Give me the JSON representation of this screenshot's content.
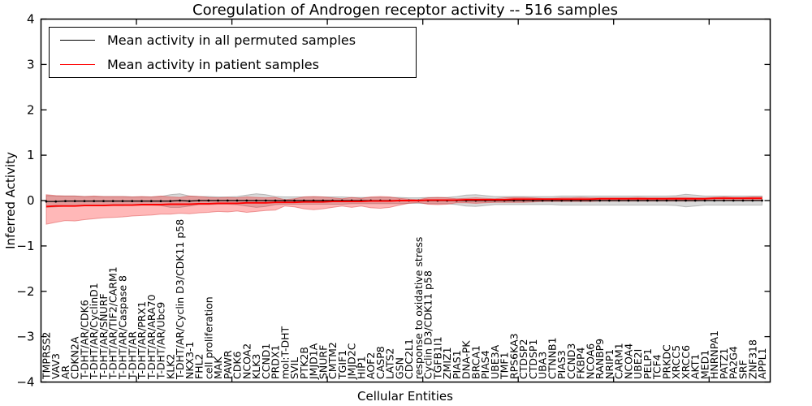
{
  "figure": {
    "title": "Coregulation of Androgen receptor activity -- 516 samples",
    "xlabel": "Cellular Entities",
    "ylabel": "Inferred Activity",
    "legend": [
      {
        "label": "Mean activity in all permuted samples",
        "color": "#000000"
      },
      {
        "label": "Mean activity in patient samples",
        "color": "#ff0000"
      }
    ]
  },
  "chart_data": {
    "type": "line",
    "title": "Coregulation of Androgen receptor activity -- 516 samples",
    "xlabel": "Cellular Entities",
    "ylabel": "Inferred Activity",
    "ylim": [
      -4,
      4
    ],
    "yticks": [
      4,
      3,
      2,
      1,
      0,
      -1,
      -2,
      -3,
      -4
    ],
    "grid": false,
    "legend_position": "upper left",
    "band_colors": {
      "permuted": "rgba(0,0,0,0.15)",
      "patient": "rgba(255,0,0,0.28)"
    },
    "categories": [
      "TMPRSS2",
      "VAV3",
      "AR",
      "CDKN2A",
      "T-DHT/AR/CDK6",
      "T-DHT/AR/CyclinD1",
      "T-DHT/AR/SNURF",
      "T-DHT/AR/TIF2/CARM1",
      "T-DHT/AR/Caspase 8",
      "T-DHT/AR",
      "T-DHT/AR/PRX1",
      "T-DHT/AR/ARA70",
      "T-DHT/AR/Ubc9",
      "KLK2",
      "T-DHT/AR/Cyclin D3/CDK11 p58",
      "NKX3-1",
      "FHL2",
      "cell proliferation",
      "MAK",
      "PAWR",
      "CDK6",
      "NCOA2",
      "KLK3",
      "CCND1",
      "PRDX1",
      "mol:T-DHT",
      "SVIL",
      "PTK2B",
      "JMJD1A",
      "SNURF",
      "CMTM2",
      "TGIF1",
      "JMJD2C",
      "HIP1",
      "AOF2",
      "CASP8",
      "LATS2",
      "GSN",
      "CDC2L1",
      "response to oxidative stress",
      "Cyclin D3/CDK11 p58",
      "TGFB1I1",
      "ZMIZ1",
      "PIAS1",
      "DNA-PK",
      "BRCA1",
      "PIAS4",
      "UBE3A",
      "TMF1",
      "RPS6KA3",
      "CTDSP2",
      "CTDSP1",
      "UBA3",
      "CTNNB1",
      "PIAS3",
      "CCND3",
      "FKBP4",
      "NCOA6",
      "RANBP9",
      "NRIP1",
      "CARM1",
      "NCOA4",
      "UBE2I",
      "PELP1",
      "TCF4",
      "PRKDC",
      "XRCC5",
      "XRCC6",
      "AKT1",
      "MED1",
      "HNRNPA1",
      "PATZ1",
      "PA2G4",
      "SRF",
      "ZNF318",
      "APPL1"
    ],
    "series": [
      {
        "name": "Mean activity in all permuted samples",
        "color": "#000000",
        "values": [
          -0.02,
          -0.02,
          -0.01,
          -0.01,
          -0.01,
          -0.01,
          -0.01,
          -0.01,
          -0.01,
          -0.01,
          -0.01,
          -0.01,
          -0.01,
          -0.01,
          0.0,
          -0.01,
          0.0,
          0.0,
          0.0,
          0.0,
          0.0,
          0.0,
          0.0,
          0.0,
          0.0,
          0.0,
          0.0,
          0.0,
          0.0,
          0.0,
          0.0,
          0.0,
          0.0,
          0.0,
          0.0,
          0.0,
          0.0,
          0.0,
          0.0,
          0.0,
          0.0,
          0.0,
          0.0,
          0.0,
          0.0,
          0.0,
          0.0,
          0.0,
          0.0,
          0.0,
          0.0,
          0.0,
          0.0,
          0.0,
          0.0,
          0.0,
          0.0,
          0.0,
          0.0,
          0.0,
          0.0,
          0.0,
          0.0,
          0.0,
          0.0,
          0.0,
          0.0,
          0.0,
          0.0,
          0.0,
          0.0,
          0.0,
          0.0,
          0.0,
          0.0,
          0.0
        ],
        "band_halfwidth": [
          0.13,
          0.12,
          0.11,
          0.11,
          0.1,
          0.1,
          0.1,
          0.1,
          0.1,
          0.09,
          0.09,
          0.09,
          0.1,
          0.14,
          0.15,
          0.11,
          0.09,
          0.09,
          0.08,
          0.08,
          0.09,
          0.12,
          0.15,
          0.13,
          0.09,
          0.08,
          0.08,
          0.08,
          0.08,
          0.08,
          0.08,
          0.08,
          0.07,
          0.07,
          0.07,
          0.07,
          0.07,
          0.07,
          0.06,
          0.06,
          0.07,
          0.07,
          0.07,
          0.09,
          0.12,
          0.13,
          0.11,
          0.09,
          0.09,
          0.09,
          0.09,
          0.09,
          0.09,
          0.09,
          0.1,
          0.1,
          0.1,
          0.1,
          0.1,
          0.1,
          0.1,
          0.1,
          0.1,
          0.1,
          0.1,
          0.1,
          0.11,
          0.14,
          0.12,
          0.1,
          0.1,
          0.1,
          0.1,
          0.1,
          0.1,
          0.1
        ]
      },
      {
        "name": "Mean activity in patient samples",
        "color": "#ff0000",
        "values": [
          -0.13,
          -0.12,
          -0.12,
          -0.12,
          -0.11,
          -0.11,
          -0.11,
          -0.1,
          -0.1,
          -0.1,
          -0.09,
          -0.09,
          -0.09,
          -0.08,
          -0.08,
          -0.08,
          -0.07,
          -0.07,
          -0.06,
          -0.06,
          -0.06,
          -0.05,
          -0.05,
          -0.05,
          -0.04,
          -0.04,
          -0.04,
          -0.03,
          -0.03,
          -0.03,
          -0.02,
          -0.02,
          -0.02,
          -0.02,
          -0.01,
          -0.01,
          -0.01,
          0.0,
          0.0,
          0.0,
          0.01,
          0.01,
          0.01,
          0.01,
          0.02,
          0.02,
          0.02,
          0.02,
          0.02,
          0.03,
          0.03,
          0.03,
          0.03,
          0.03,
          0.03,
          0.03,
          0.03,
          0.03,
          0.04,
          0.04,
          0.04,
          0.04,
          0.04,
          0.04,
          0.04,
          0.04,
          0.04,
          0.04,
          0.04,
          0.04,
          0.05,
          0.05,
          0.05,
          0.05,
          0.05,
          0.05
        ],
        "band_upper": [
          0.13,
          0.11,
          0.1,
          0.1,
          0.09,
          0.1,
          0.09,
          0.09,
          0.09,
          0.08,
          0.09,
          0.08,
          0.1,
          0.08,
          0.07,
          0.1,
          0.09,
          0.07,
          0.06,
          0.07,
          0.06,
          0.08,
          0.07,
          0.06,
          0.07,
          0.02,
          0.04,
          0.08,
          0.09,
          0.08,
          0.06,
          0.04,
          0.07,
          0.05,
          0.08,
          0.09,
          0.08,
          0.05,
          0.03,
          0.02,
          0.06,
          0.07,
          0.06,
          0.04,
          0.05,
          0.06,
          0.05,
          0.04,
          0.06,
          0.07,
          0.07,
          0.06,
          0.05,
          0.05,
          0.06,
          0.06,
          0.07,
          0.06,
          0.06,
          0.06,
          0.06,
          0.06,
          0.07,
          0.06,
          0.06,
          0.06,
          0.07,
          0.07,
          0.06,
          0.06,
          0.07,
          0.08,
          0.07,
          0.07,
          0.08,
          0.08
        ],
        "band_lower": [
          -0.52,
          -0.48,
          -0.44,
          -0.45,
          -0.42,
          -0.4,
          -0.38,
          -0.37,
          -0.36,
          -0.34,
          -0.33,
          -0.32,
          -0.3,
          -0.3,
          -0.28,
          -0.29,
          -0.27,
          -0.26,
          -0.24,
          -0.25,
          -0.23,
          -0.26,
          -0.24,
          -0.22,
          -0.21,
          -0.12,
          -0.14,
          -0.18,
          -0.2,
          -0.18,
          -0.15,
          -0.12,
          -0.15,
          -0.12,
          -0.16,
          -0.17,
          -0.15,
          -0.1,
          -0.06,
          -0.04,
          -0.08,
          -0.09,
          -0.08,
          -0.05,
          -0.05,
          -0.06,
          -0.05,
          -0.04,
          -0.04,
          -0.04,
          -0.04,
          -0.03,
          -0.02,
          -0.02,
          -0.02,
          -0.02,
          -0.02,
          -0.02,
          -0.01,
          -0.01,
          -0.01,
          -0.01,
          -0.01,
          -0.01,
          -0.01,
          -0.01,
          -0.01,
          -0.01,
          -0.01,
          0.0,
          0.0,
          0.0,
          0.01,
          0.01,
          0.01,
          0.01
        ]
      }
    ]
  }
}
